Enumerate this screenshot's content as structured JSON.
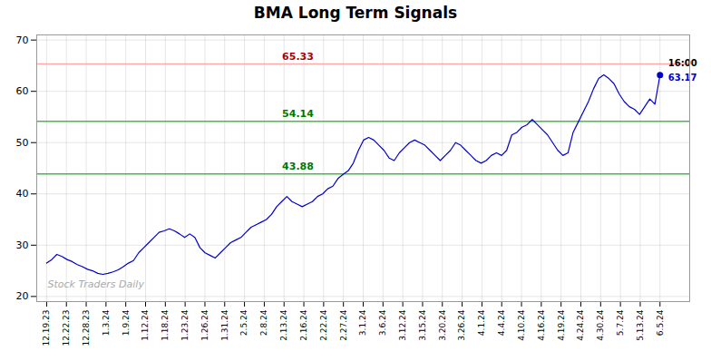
{
  "chart_data": {
    "type": "line",
    "title": "BMA Long Term Signals",
    "color": "#0000cc",
    "grid": true,
    "x": [
      0,
      0.258333,
      0.516667,
      0.775,
      1.033333,
      1.291667,
      1.55,
      1.808333,
      2.066667,
      2.325,
      2.583333,
      2.841667,
      3.1,
      3.358333,
      3.616667,
      3.875,
      4.133333,
      4.391667,
      4.65,
      4.908333,
      5.166667,
      5.425,
      5.683333,
      5.941667,
      6.2,
      6.458333,
      6.716667,
      6.975,
      7.233333,
      7.491667,
      7.75,
      8.008333,
      8.266667,
      8.525,
      8.783333,
      9.041667,
      9.3,
      9.558333,
      9.816667,
      10.075,
      10.333333,
      10.591667,
      10.85,
      11.108333,
      11.366667,
      11.625,
      11.883333,
      12.141667,
      12.4,
      12.658333,
      12.916667,
      13.175,
      13.433333,
      13.691667,
      13.95,
      14.208333,
      14.466667,
      14.725,
      14.983333,
      15.241667,
      15.5,
      15.758333,
      16.016667,
      16.275,
      16.533333,
      16.791667,
      17.05,
      17.308333,
      17.566667,
      17.825,
      18.083333,
      18.341667,
      18.6,
      18.858333,
      19.116667,
      19.375,
      19.633333,
      19.891667,
      20.15,
      20.408333,
      20.666667,
      20.925,
      21.183333,
      21.441667,
      21.7,
      21.958333,
      22.216667,
      22.475,
      22.733333,
      22.991667,
      23.25,
      23.508333,
      23.766667,
      24.025,
      24.283333,
      24.541667,
      24.8,
      25.058333,
      25.316667,
      25.575,
      25.833333,
      26.091667,
      26.35,
      26.608333,
      26.866667,
      27.125,
      27.383333,
      27.641667,
      27.9,
      28.158333,
      28.416667,
      28.675,
      28.933333,
      29.191667,
      29.45,
      29.708333,
      29.966667,
      30.225,
      30.483333,
      30.741667,
      31
    ],
    "values": [
      26.5,
      27.2,
      28.2,
      27.8,
      27.2,
      26.8,
      26.2,
      25.8,
      25.3,
      25.0,
      24.5,
      24.3,
      24.5,
      24.8,
      25.2,
      25.8,
      26.5,
      27.0,
      28.5,
      29.5,
      30.5,
      31.5,
      32.5,
      32.8,
      33.2,
      32.8,
      32.2,
      31.5,
      32.2,
      31.5,
      29.5,
      28.5,
      28.0,
      27.5,
      28.5,
      29.5,
      30.5,
      31.0,
      31.5,
      32.5,
      33.5,
      34.0,
      34.5,
      35.0,
      36.0,
      37.5,
      38.5,
      39.5,
      38.5,
      38.0,
      37.5,
      38.0,
      38.5,
      39.5,
      40.0,
      41.0,
      41.5,
      43.0,
      43.8,
      44.5,
      46.0,
      48.5,
      50.5,
      51.0,
      50.5,
      49.5,
      48.5,
      47.0,
      46.5,
      48.0,
      49.0,
      50.0,
      50.5,
      50.0,
      49.5,
      48.5,
      47.5,
      46.5,
      47.5,
      48.5,
      50.0,
      49.5,
      48.5,
      47.5,
      46.5,
      46.0,
      46.5,
      47.5,
      48.0,
      47.5,
      48.5,
      51.5,
      52.0,
      53.0,
      53.5,
      54.5,
      53.5,
      52.5,
      51.5,
      50.0,
      48.5,
      47.5,
      48.0,
      52.0,
      54.0,
      56.0,
      58.0,
      60.5,
      62.5,
      63.2,
      62.5,
      61.5,
      59.5,
      58.0,
      57.0,
      56.5,
      55.5,
      57.0,
      58.5,
      57.5,
      63.17
    ],
    "xlim": [
      -0.5,
      32.5
    ],
    "xticks": [
      {
        "value": 0,
        "label": "12.19.23"
      },
      {
        "value": 1,
        "label": "12.22.23"
      },
      {
        "value": 2,
        "label": "12.28.23"
      },
      {
        "value": 3,
        "label": "1.3.24"
      },
      {
        "value": 4,
        "label": "1.9.24"
      },
      {
        "value": 5,
        "label": "1.12.24"
      },
      {
        "value": 6,
        "label": "1.18.24"
      },
      {
        "value": 7,
        "label": "1.23.24"
      },
      {
        "value": 8,
        "label": "1.26.24"
      },
      {
        "value": 9,
        "label": "1.31.24"
      },
      {
        "value": 10,
        "label": "2.5.24"
      },
      {
        "value": 11,
        "label": "2.8.24"
      },
      {
        "value": 12,
        "label": "2.13.24"
      },
      {
        "value": 13,
        "label": "2.16.24"
      },
      {
        "value": 14,
        "label": "2.22.24"
      },
      {
        "value": 15,
        "label": "2.27.24"
      },
      {
        "value": 16,
        "label": "3.1.24"
      },
      {
        "value": 17,
        "label": "3.6.24"
      },
      {
        "value": 18,
        "label": "3.12.24"
      },
      {
        "value": 19,
        "label": "3.15.24"
      },
      {
        "value": 20,
        "label": "3.20.24"
      },
      {
        "value": 21,
        "label": "3.26.24"
      },
      {
        "value": 22,
        "label": "4.1.24"
      },
      {
        "value": 23,
        "label": "4.4.24"
      },
      {
        "value": 24,
        "label": "4.10.24"
      },
      {
        "value": 25,
        "label": "4.16.24"
      },
      {
        "value": 26,
        "label": "4.19.24"
      },
      {
        "value": 27,
        "label": "4.24.24"
      },
      {
        "value": 28,
        "label": "4.30.24"
      },
      {
        "value": 29,
        "label": "5.7.24"
      },
      {
        "value": 30,
        "label": "5.13.24"
      },
      {
        "value": 31,
        "label": "6.5.24"
      }
    ],
    "ylim": [
      19,
      71
    ],
    "yticks": [
      20,
      30,
      40,
      50,
      60,
      70
    ],
    "reference_lines": [
      {
        "y": 65.33,
        "label": "65.33",
        "color": "#ffaaaa",
        "label_color": "#aa0000"
      },
      {
        "y": 54.14,
        "label": "54.14",
        "color": "#44bb44",
        "label_color": "#007700"
      },
      {
        "y": 43.88,
        "label": "43.88",
        "color": "#44bb44",
        "label_color": "#007700"
      }
    ],
    "annotations": [
      {
        "text": "16:00"
      },
      {
        "text": "63.17",
        "value": 63.17
      }
    ],
    "watermark": "Stock Traders Daily"
  }
}
